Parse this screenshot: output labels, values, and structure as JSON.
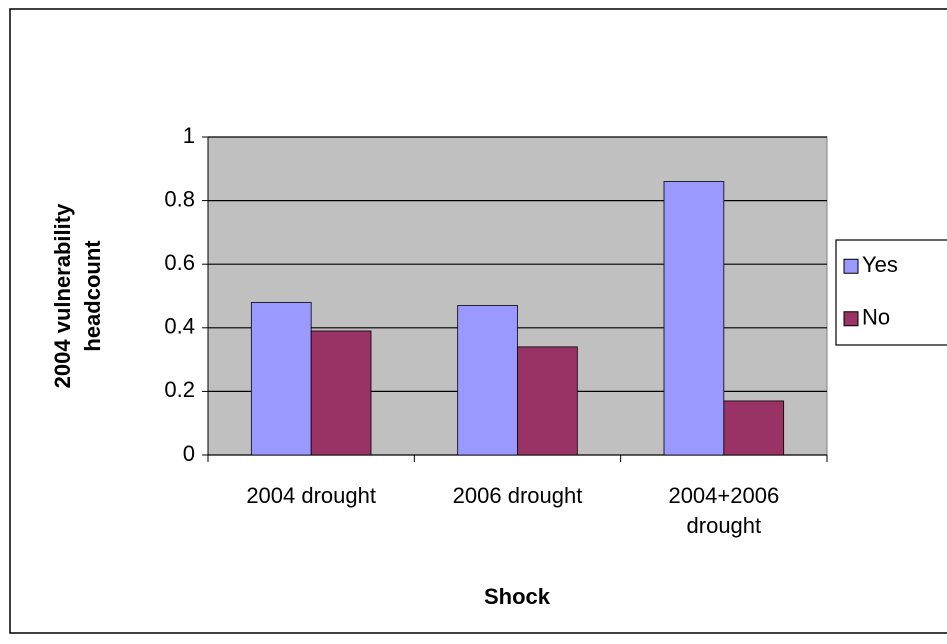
{
  "chart_data": {
    "type": "bar",
    "x_label": "Shock",
    "y_label": "2004 vulnerability headcount",
    "categories": [
      "2004 drought",
      "2006 drought",
      "2004+2006 drought"
    ],
    "series": [
      {
        "name": "Yes",
        "color": "#9999ff",
        "values": [
          0.48,
          0.47,
          0.86
        ]
      },
      {
        "name": "No",
        "color": "#993366",
        "values": [
          0.39,
          0.34,
          0.17
        ]
      }
    ],
    "ylim": [
      0,
      1
    ],
    "yticks": [
      0,
      0.2,
      0.4,
      0.6,
      0.8,
      1
    ],
    "grid": true,
    "legend": "right",
    "plot_background": "#c0c0c0"
  }
}
